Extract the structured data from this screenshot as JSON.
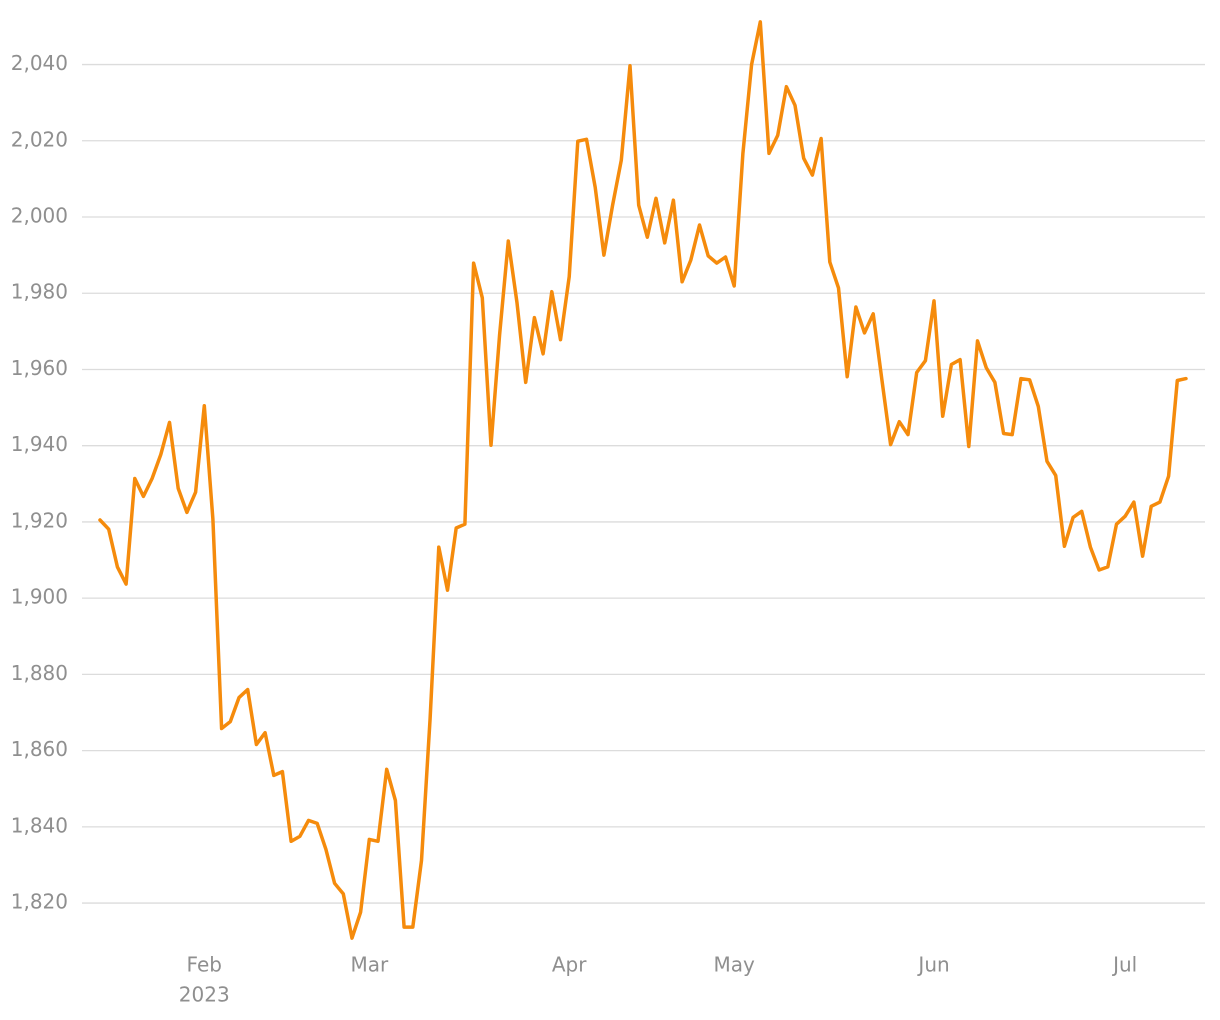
{
  "chart_data": {
    "type": "line",
    "categories": [
      null,
      null,
      null,
      null,
      null,
      null,
      null,
      null,
      null,
      null,
      null,
      null,
      "Feb",
      null,
      null,
      null,
      null,
      null,
      null,
      null,
      null,
      null,
      null,
      null,
      null,
      null,
      null,
      null,
      null,
      null,
      null,
      "Mar",
      null,
      null,
      null,
      null,
      null,
      null,
      null,
      null,
      null,
      null,
      null,
      null,
      null,
      null,
      null,
      null,
      null,
      null,
      null,
      null,
      null,
      null,
      "Apr",
      null,
      null,
      null,
      null,
      null,
      null,
      null,
      null,
      null,
      null,
      null,
      null,
      null,
      null,
      null,
      null,
      null,
      null,
      "May",
      null,
      null,
      null,
      null,
      null,
      null,
      null,
      null,
      null,
      null,
      null,
      null,
      null,
      null,
      null,
      null,
      null,
      null,
      null,
      null,
      null,
      null,
      "Jun",
      null,
      null,
      null,
      null,
      null,
      null,
      null,
      null,
      null,
      null,
      null,
      null,
      null,
      null,
      null,
      null,
      null,
      null,
      null,
      null,
      null,
      "Jul",
      null,
      null,
      null,
      null,
      null,
      null,
      null
    ],
    "x_sublabel": {
      "category": "Feb",
      "label": "2023"
    },
    "values": [
      1920.5,
      1918.1,
      1908.2,
      1903.7,
      1931.4,
      1926.7,
      1931.4,
      1937.7,
      1946.1,
      1928.8,
      1922.5,
      1927.8,
      1950.5,
      1920.7,
      1865.8,
      1867.6,
      1873.9,
      1876.0,
      1861.6,
      1864.7,
      1853.5,
      1854.5,
      1836.2,
      1837.5,
      1841.7,
      1840.9,
      1834.1,
      1825.2,
      1822.4,
      1810.8,
      1817.6,
      1836.7,
      1836.2,
      1855.1,
      1846.9,
      1813.7,
      1813.7,
      1831.2,
      1868.4,
      1913.4,
      1902.1,
      1918.4,
      1919.4,
      1987.9,
      1978.8,
      1940.1,
      1969.1,
      1993.7,
      1977.5,
      1956.6,
      1973.6,
      1964.1,
      1980.4,
      1967.8,
      1984.3,
      2019.9,
      2020.4,
      2007.8,
      1990.0,
      2003.1,
      2014.9,
      2039.7,
      2003.1,
      1994.7,
      2004.9,
      1993.2,
      2004.4,
      1983.0,
      1988.7,
      1997.9,
      1989.8,
      1987.9,
      1989.5,
      1981.9,
      2016.7,
      2040.0,
      2051.2,
      2016.7,
      2021.4,
      2034.2,
      2029.3,
      2015.4,
      2011.0,
      2020.6,
      1988.2,
      1981.4,
      1958.1,
      1976.4,
      1969.6,
      1974.6,
      1957.3,
      1940.3,
      1946.3,
      1942.9,
      1959.2,
      1962.3,
      1978.0,
      1947.7,
      1961.3,
      1962.6,
      1939.8,
      1967.5,
      1960.5,
      1956.6,
      1943.2,
      1942.9,
      1957.6,
      1957.3,
      1950.3,
      1935.9,
      1932.2,
      1913.6,
      1921.2,
      1922.8,
      1913.4,
      1907.4,
      1908.2,
      1919.4,
      1921.5,
      1925.2,
      1911.0,
      1924.1,
      1925.2,
      1932.0,
      1957.1,
      1957.6
    ],
    "color": "#f58b0c",
    "ylim": [
      1809,
      2053
    ],
    "yticks": [
      {
        "value": 1820,
        "label": "1,820"
      },
      {
        "value": 1840,
        "label": "1,840"
      },
      {
        "value": 1860,
        "label": "1,860"
      },
      {
        "value": 1880,
        "label": "1,880"
      },
      {
        "value": 1900,
        "label": "1,900"
      },
      {
        "value": 1920,
        "label": "1,920"
      },
      {
        "value": 1940,
        "label": "1,940"
      },
      {
        "value": 1960,
        "label": "1,960"
      },
      {
        "value": 1980,
        "label": "1,980"
      },
      {
        "value": 2000,
        "label": "2,000"
      },
      {
        "value": 2020,
        "label": "2,020"
      },
      {
        "value": 2040,
        "label": "2,040"
      }
    ],
    "grid": true
  }
}
